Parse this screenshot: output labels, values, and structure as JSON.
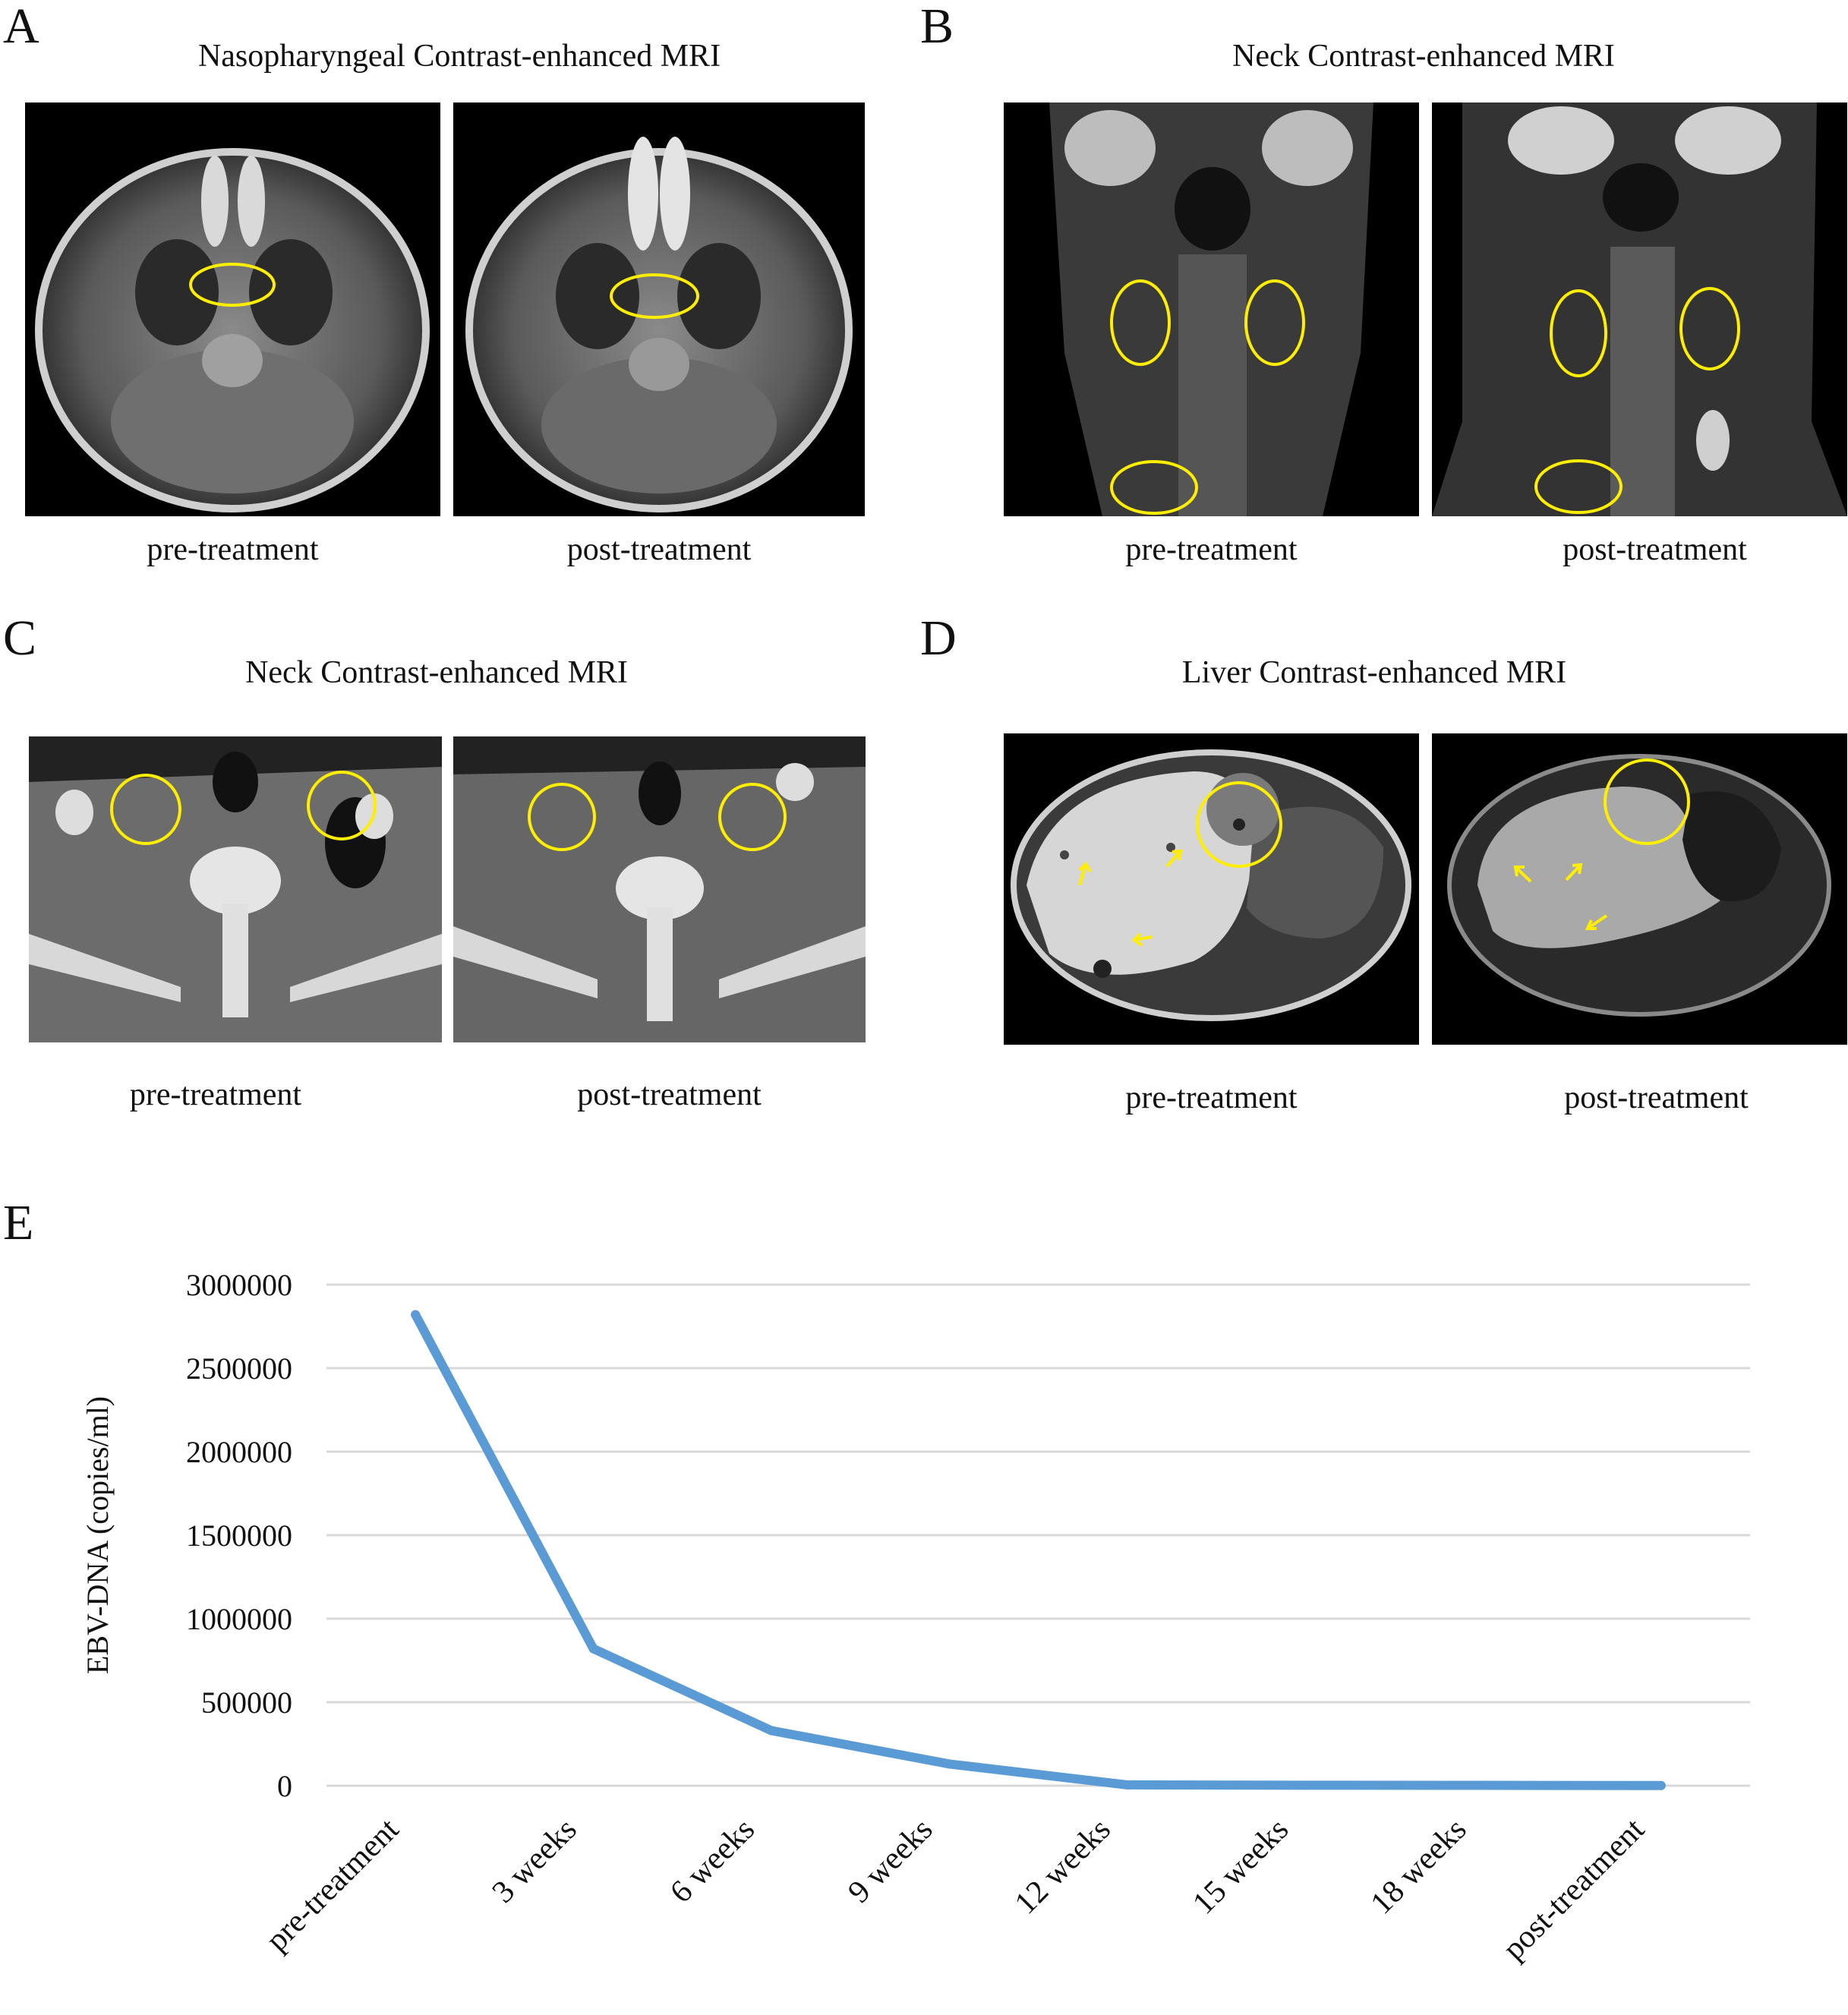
{
  "panels": [
    {
      "letter": "A",
      "title": "Nasopharyngeal Contrast-enhanced MRI",
      "left_caption": "pre-treatment",
      "right_caption": "post-treatment"
    },
    {
      "letter": "B",
      "title": "Neck Contrast-enhanced MRI",
      "left_caption": "pre-treatment",
      "right_caption": "post-treatment"
    },
    {
      "letter": "C",
      "title": "Neck Contrast-enhanced MRI",
      "left_caption": "pre-treatment",
      "right_caption": "post-treatment"
    },
    {
      "letter": "D",
      "title": "Liver Contrast-enhanced MRI",
      "left_caption": "pre-treatment",
      "right_caption": "post-treatment"
    }
  ],
  "colors": {
    "annotation": "#ffee00",
    "line": "#5b9bd5",
    "grid": "#d9d9d9"
  },
  "panel_e": {
    "letter": "E"
  },
  "chart_data": {
    "type": "line",
    "categories": [
      "pre-treatment",
      "3 weeks",
      "6 weeks",
      "9 weeks",
      "12 weeks",
      "15 weeks",
      "18 weeks",
      "post-treatment"
    ],
    "series": [
      {
        "values": [
          2820000,
          820000,
          330000,
          130000,
          5000,
          3000,
          2000,
          1000
        ]
      }
    ],
    "title": "",
    "xlabel": "",
    "ylabel": "EBV-DNA (copies/ml)",
    "ylim": [
      0,
      3000000
    ],
    "yticks": [
      "0",
      "500000",
      "1000000",
      "1500000",
      "2000000",
      "2500000",
      "3000000"
    ],
    "grid": true
  }
}
